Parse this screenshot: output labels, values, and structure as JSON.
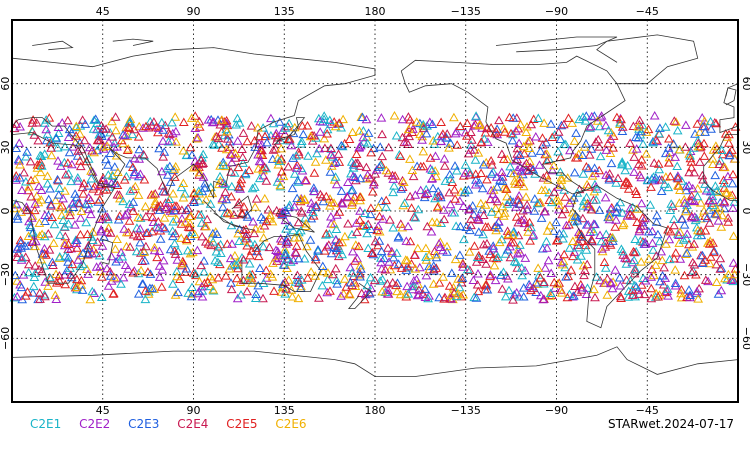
{
  "map": {
    "top_lon_labels": [
      "45",
      "90",
      "135",
      "180",
      "−135",
      "−90",
      "−45"
    ],
    "bottom_lon_labels": [
      "45",
      "90",
      "135",
      "180",
      "−135",
      "−90",
      "−45"
    ],
    "lat_labels": [
      "60",
      "30",
      "0",
      "−30",
      "−60"
    ],
    "lon_values": [
      45,
      90,
      135,
      180,
      -135,
      -90,
      -45
    ],
    "lat_values": [
      60,
      30,
      0,
      -30,
      -60
    ],
    "center_lon": 0,
    "lon_range": [
      0,
      360
    ],
    "lat_range": [
      -90,
      90
    ],
    "observation_lat_band": [
      -42,
      45
    ]
  },
  "legend": [
    {
      "label": "C2E1",
      "color": "#19b4c8"
    },
    {
      "label": "C2E2",
      "color": "#a020c8"
    },
    {
      "label": "C2E3",
      "color": "#2060e0"
    },
    {
      "label": "C2E4",
      "color": "#c81850"
    },
    {
      "label": "C2E5",
      "color": "#e02020"
    },
    {
      "label": "C2E6",
      "color": "#f0b000"
    }
  ],
  "stamp": "STARwet.2024-07-17",
  "marker": "triangle-outline"
}
